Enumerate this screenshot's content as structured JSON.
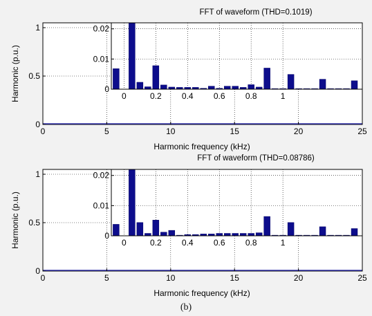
{
  "figure_label": "(b)",
  "colors": {
    "bar": "#0d0d8c",
    "bar_edge": "#000066",
    "axis": "#000000",
    "grid": "#000000",
    "base_line": "#3333aa",
    "background": "#ffffff"
  },
  "chart_data": [
    {
      "type": "bar",
      "title": "FFT of waveform (THD=0.1019)",
      "xlabel": "Harmonic frequency (kHz)",
      "ylabel": "Harmonic (p.u.)",
      "main": {
        "xlim": [
          0,
          25
        ],
        "ylim": [
          0,
          1.05
        ],
        "xticks": [
          "0",
          "5",
          "10",
          "15",
          "20",
          "25"
        ],
        "xtick_values": [
          0,
          5,
          10,
          15,
          20,
          25
        ],
        "yticks": [
          "0",
          "0.5",
          "1"
        ],
        "ytick_values": [
          0,
          0.5,
          1
        ],
        "grid": true
      },
      "inset": {
        "xlim": [
          -0.08,
          1.5
        ],
        "ylim": [
          0,
          0.022
        ],
        "xticks": [
          "0",
          "0.2",
          "0.4",
          "0.6",
          "0.8",
          "1"
        ],
        "xtick_values": [
          0,
          0.2,
          0.4,
          0.6,
          0.8,
          1.0
        ],
        "yticks": [
          "0",
          "0.01",
          "0.02"
        ],
        "ytick_values": [
          0,
          0.01,
          0.02
        ],
        "grid": true,
        "x": [
          -0.05,
          0.05,
          0.1,
          0.15,
          0.2,
          0.25,
          0.3,
          0.35,
          0.4,
          0.45,
          0.5,
          0.55,
          0.6,
          0.65,
          0.7,
          0.75,
          0.8,
          0.85,
          0.9,
          0.95,
          1.0,
          1.05,
          1.1,
          1.15,
          1.2,
          1.25,
          1.3,
          1.35,
          1.4,
          1.45
        ],
        "values": [
          0.0068,
          0.022,
          0.0023,
          0.0008,
          0.0078,
          0.0014,
          0.0007,
          0.0006,
          0.0006,
          0.0006,
          0.0003,
          0.001,
          0.0003,
          0.001,
          0.001,
          0.0006,
          0.0015,
          0.0007,
          0.007,
          0.0002,
          0.0002,
          0.0049,
          0.0002,
          0.0002,
          0.0002,
          0.0033,
          0.0002,
          0.0002,
          0.0002,
          0.0028
        ]
      }
    },
    {
      "type": "bar",
      "title": "FFT of waveform (THD=0.08786)",
      "xlabel": "Harmonic frequency (kHz)",
      "ylabel": "Harmonic (p.u.)",
      "main": {
        "xlim": [
          0,
          25
        ],
        "ylim": [
          0,
          1.05
        ],
        "xticks": [
          "0",
          "5",
          "10",
          "15",
          "20",
          "25"
        ],
        "xtick_values": [
          0,
          5,
          10,
          15,
          20,
          25
        ],
        "yticks": [
          "0",
          "0.5",
          "1"
        ],
        "ytick_values": [
          0,
          0.5,
          1
        ],
        "grid": true
      },
      "inset": {
        "xlim": [
          -0.08,
          1.5
        ],
        "ylim": [
          0,
          0.022
        ],
        "xticks": [
          "0",
          "0.2",
          "0.4",
          "0.6",
          "0.8",
          "1"
        ],
        "xtick_values": [
          0,
          0.2,
          0.4,
          0.6,
          0.8,
          1.0
        ],
        "yticks": [
          "0",
          "0.01",
          "0.02"
        ],
        "ytick_values": [
          0,
          0.01,
          0.02
        ],
        "grid": true,
        "x": [
          -0.05,
          0.05,
          0.1,
          0.15,
          0.2,
          0.25,
          0.3,
          0.35,
          0.4,
          0.45,
          0.5,
          0.55,
          0.6,
          0.65,
          0.7,
          0.75,
          0.8,
          0.85,
          0.9,
          0.95,
          1.0,
          1.05,
          1.1,
          1.15,
          1.2,
          1.25,
          1.3,
          1.35,
          1.4,
          1.45
        ],
        "values": [
          0.0038,
          0.022,
          0.0044,
          0.0008,
          0.0052,
          0.0012,
          0.0018,
          0.0002,
          0.0004,
          0.0004,
          0.0006,
          0.0006,
          0.0008,
          0.0008,
          0.0008,
          0.0008,
          0.0008,
          0.001,
          0.0064,
          0.0002,
          0.0002,
          0.0044,
          0.0002,
          0.0002,
          0.0002,
          0.003,
          0.0002,
          0.0002,
          0.0002,
          0.0024
        ]
      }
    }
  ]
}
